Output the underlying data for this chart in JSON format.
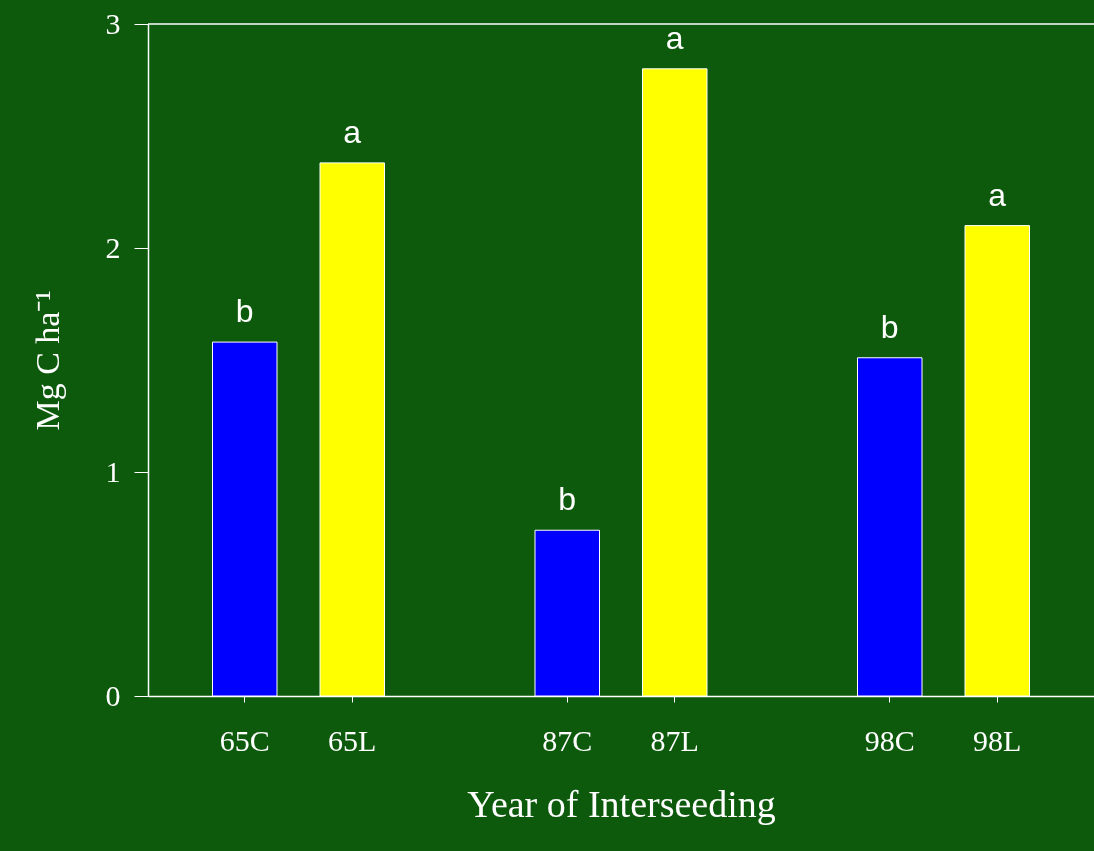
{
  "chart_data": {
    "type": "bar",
    "xlabel": "Year of Interseeding",
    "ylabel": "Mg C ha⁻¹",
    "categories": [
      "65C",
      "65L",
      null,
      "87C",
      "87L",
      null,
      "98C",
      "98L"
    ],
    "values": [
      1.58,
      2.38,
      null,
      0.74,
      2.8,
      null,
      1.51,
      2.1
    ],
    "colors": [
      "#0000ff",
      "#ffff00",
      null,
      "#0000ff",
      "#ffff00",
      null,
      "#0000ff",
      "#ffff00"
    ],
    "ylim": [
      0,
      3
    ],
    "yticks": [
      0,
      1,
      2,
      3
    ],
    "grid": false,
    "annotations": [
      "b",
      "a",
      "b",
      "a",
      "b",
      "a"
    ]
  }
}
